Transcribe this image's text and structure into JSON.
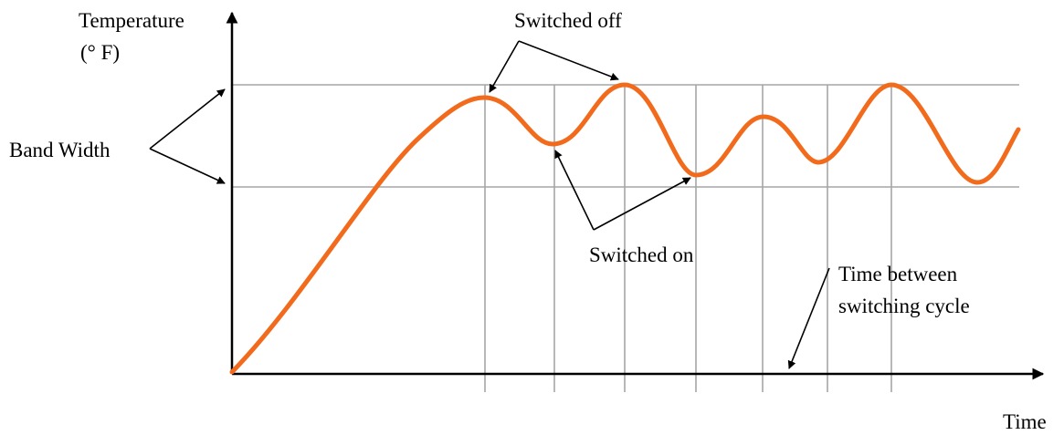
{
  "diagram": {
    "y_axis_label_line1": "Temperature",
    "y_axis_label_line2": "(° F)",
    "x_axis_label": "Time",
    "band_width_label": "Band Width",
    "switched_off_label": "Switched off",
    "switched_on_label": "Switched on",
    "cycle_label_line1": "Time between",
    "cycle_label_line2": "switching cycle",
    "colors": {
      "curve": "#f26b1d",
      "grid": "#a6a6a6",
      "axis": "#000000"
    }
  }
}
